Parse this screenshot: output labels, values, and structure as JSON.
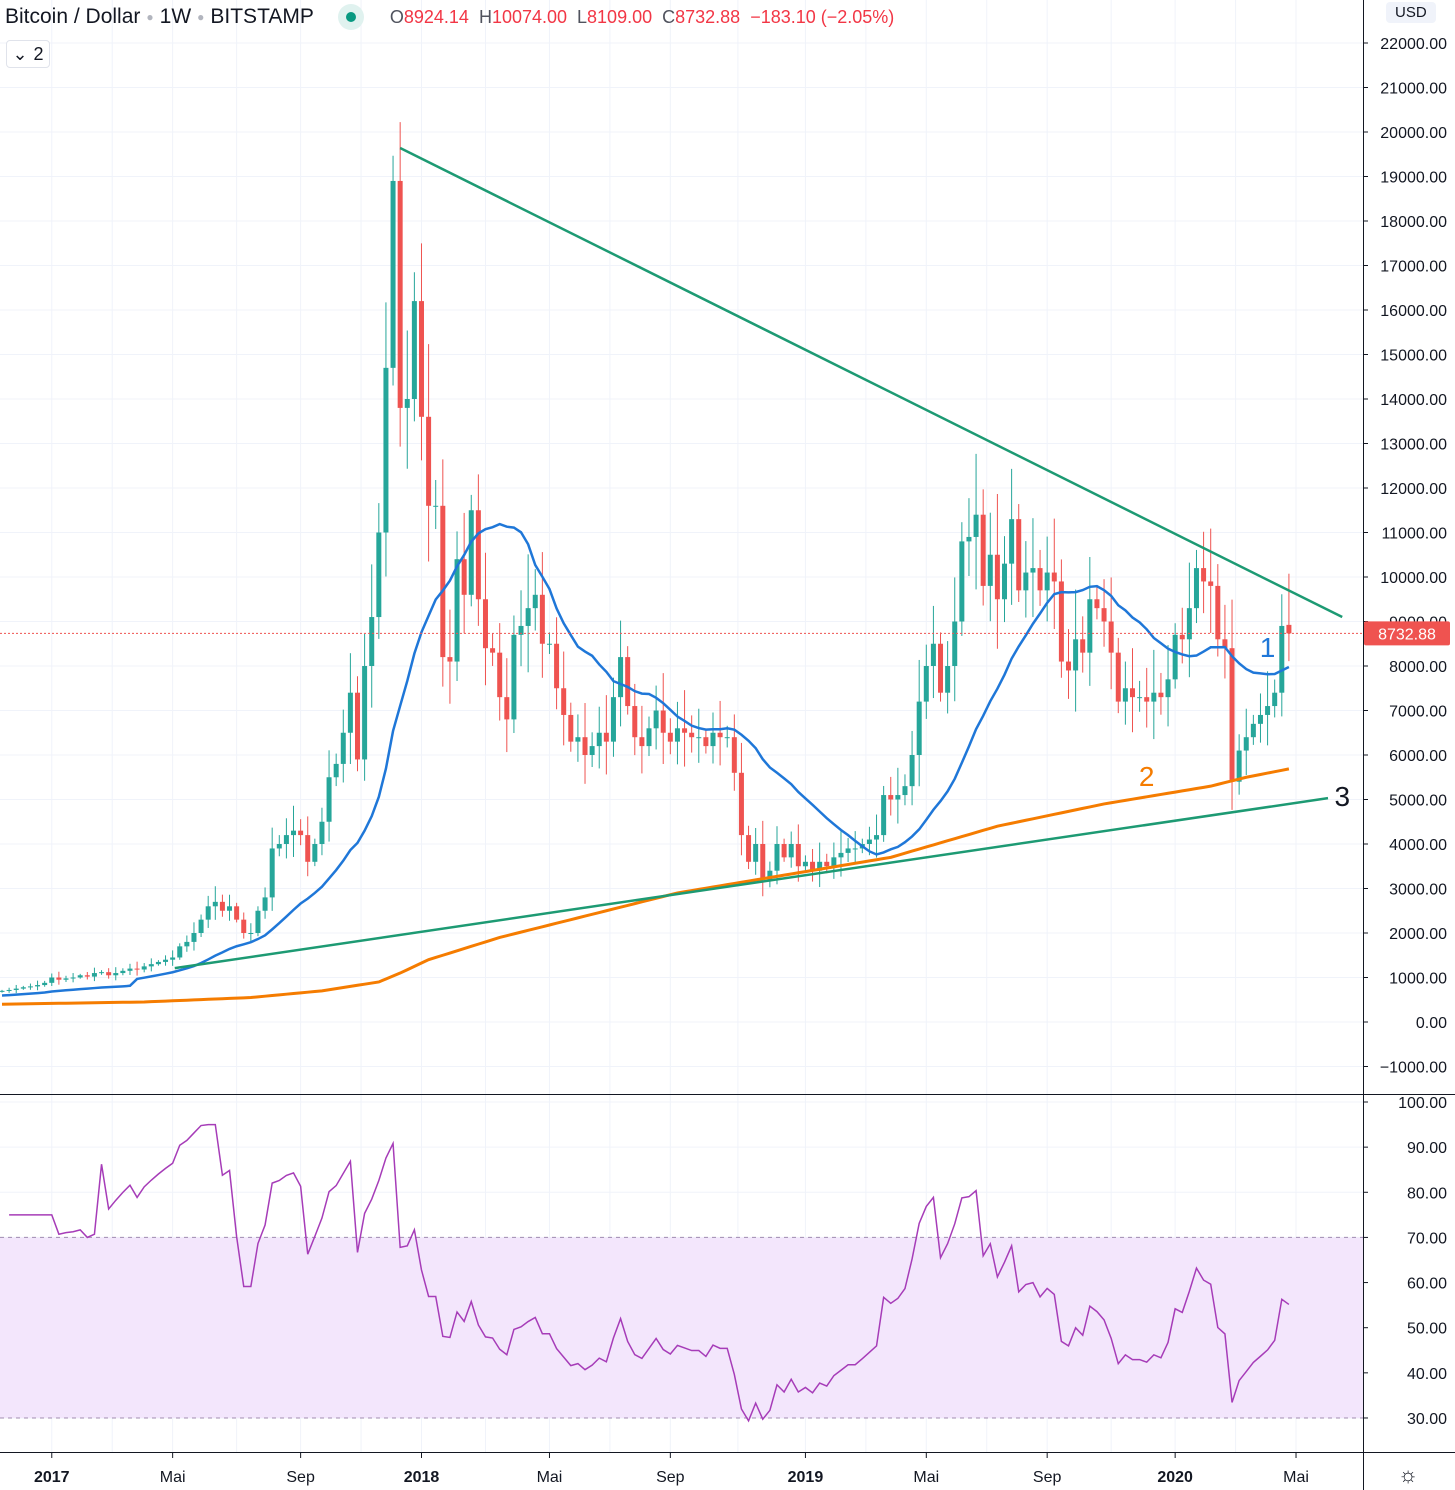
{
  "header": {
    "symbol": "Bitcoin / Dollar",
    "interval": "1W",
    "exchange": "BITSTAMP",
    "o_label": "O",
    "o": "8924.14",
    "h_label": "H",
    "h": "10074.00",
    "l_label": "L",
    "l": "8109.00",
    "c_label": "C",
    "c": "8732.88",
    "change": "−183.10 (−2.05%)"
  },
  "collapse_count": "2",
  "currency": "USD",
  "settings_icon": "gear-icon",
  "colors": {
    "up": "#26a69a",
    "down": "#ef5350",
    "ma_short": "#1f77d8",
    "ma_long": "#f57c00",
    "trend": "#1d9a73",
    "rsi": "#a63cb8",
    "rsi_band": "#f3e6fc",
    "price_line": "#ef5350"
  },
  "chart_data": {
    "type": "candlestick",
    "price_axis": {
      "min": -1000,
      "max": 22000,
      "step": 1000,
      "ticks": [
        "−1000.00",
        "0.00",
        "1000.00",
        "2000.00",
        "3000.00",
        "4000.00",
        "5000.00",
        "6000.00",
        "7000.00",
        "8000.00",
        "9000.00",
        "10000.00",
        "11000.00",
        "12000.00",
        "13000.00",
        "14000.00",
        "15000.00",
        "16000.00",
        "17000.00",
        "18000.00",
        "19000.00",
        "20000.00",
        "21000.00",
        "22000.00"
      ]
    },
    "time_axis": [
      {
        "label": "2017",
        "week": 7,
        "bold": true
      },
      {
        "label": "Mai",
        "week": 24
      },
      {
        "label": "Sep",
        "week": 42
      },
      {
        "label": "2018",
        "week": 59,
        "bold": true
      },
      {
        "label": "Mai",
        "week": 77
      },
      {
        "label": "Sep",
        "week": 94
      },
      {
        "label": "2019",
        "week": 113,
        "bold": true
      },
      {
        "label": "Mai",
        "week": 130
      },
      {
        "label": "Sep",
        "week": 147
      },
      {
        "label": "2020",
        "week": 165,
        "bold": true
      },
      {
        "label": "Mai",
        "week": 182
      }
    ],
    "weekly_close": [
      700,
      720,
      750,
      780,
      800,
      830,
      880,
      1000,
      950,
      980,
      1000,
      1050,
      1020,
      1100,
      1120,
      1050,
      1100,
      1150,
      1200,
      1180,
      1250,
      1300,
      1350,
      1400,
      1450,
      1700,
      1800,
      2000,
      2300,
      2600,
      2700,
      2500,
      2600,
      2300,
      2000,
      2000,
      2500,
      2800,
      3900,
      4000,
      4200,
      4300,
      4200,
      3600,
      4000,
      4500,
      5500,
      5800,
      6500,
      7400,
      5900,
      8000,
      9100,
      11000,
      14700,
      18900,
      13800,
      14000,
      16200,
      13600,
      11600,
      11600,
      8200,
      8100,
      10400,
      9600,
      11500,
      9500,
      8400,
      8300,
      7300,
      6800,
      8700,
      8900,
      9300,
      9600,
      8500,
      8500,
      7500,
      6900,
      6300,
      6400,
      6000,
      6200,
      6500,
      6300,
      7300,
      8200,
      7100,
      6400,
      6200,
      6600,
      7000,
      6500,
      6300,
      6600,
      6500,
      6400,
      6400,
      6200,
      6500,
      6400,
      6400,
      5600,
      4200,
      3600,
      4000,
      3200,
      3400,
      4000,
      3700,
      4000,
      3500,
      3600,
      3400,
      3600,
      3500,
      3700,
      3800,
      3900,
      3900,
      4000,
      4100,
      4200,
      5100,
      5000,
      5100,
      5300,
      6000,
      7200,
      8000,
      8500,
      7400,
      8000,
      9000,
      10800,
      10900,
      11400,
      9800,
      10500,
      9500,
      10300,
      11300,
      9700,
      10100,
      10200,
      9700,
      10100,
      9900,
      8100,
      7900,
      8600,
      8300,
      9500,
      9300,
      9000,
      8300,
      7200,
      7500,
      7300,
      7300,
      7200,
      7400,
      7300,
      7700,
      8700,
      8600,
      9300,
      10200,
      9900,
      9800,
      8600,
      8400,
      5400,
      6100,
      6400,
      6700,
      6900,
      7100,
      7400,
      8900,
      8732.88
    ],
    "last_candle": {
      "open": 8924.14,
      "high": 10074.0,
      "low": 8109.0,
      "close": 8732.88
    },
    "current_price": "8732.88",
    "ma_short_period": 20,
    "ma_long": [
      [
        0,
        400
      ],
      [
        20,
        450
      ],
      [
        35,
        550
      ],
      [
        45,
        700
      ],
      [
        53,
        900
      ],
      [
        56,
        1100
      ],
      [
        60,
        1400
      ],
      [
        70,
        1900
      ],
      [
        80,
        2300
      ],
      [
        95,
        2900
      ],
      [
        110,
        3300
      ],
      [
        125,
        3700
      ],
      [
        140,
        4400
      ],
      [
        155,
        4900
      ],
      [
        170,
        5300
      ],
      [
        175,
        5500
      ],
      [
        183,
        5750
      ]
    ],
    "trendlines": [
      {
        "name": "resistance",
        "from": [
          56,
          19640
        ],
        "to": [
          188.5,
          9100
        ]
      },
      {
        "name": "support",
        "from": [
          24.3,
          1210
        ],
        "to": [
          186.5,
          5030
        ]
      }
    ],
    "annotations": [
      {
        "text": "1",
        "color": "#1f77d8",
        "week": 178,
        "price": 8200
      },
      {
        "text": "2",
        "color": "#f57c00",
        "week": 161,
        "price": 5300
      },
      {
        "text": "3",
        "color": "#131722",
        "week": 188.5,
        "price": 4850
      }
    ],
    "rsi": {
      "period": 14,
      "min": 30,
      "max": 100,
      "band": [
        30,
        70
      ],
      "ticks": [
        "30.00",
        "40.00",
        "50.00",
        "60.00",
        "70.00",
        "80.00",
        "90.00",
        "100.00"
      ]
    }
  }
}
